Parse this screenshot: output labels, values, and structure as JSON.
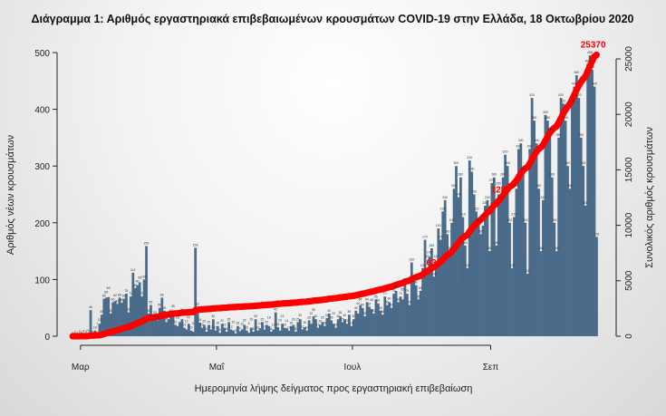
{
  "chart_data": {
    "type": "bar+line",
    "title": "Διάγραμμα 1: Αριθμός εργαστηριακά επιβεβαιωμένων κρουσμάτων COVID-19 στην Ελλάδα, 18 Οκτωβρίου 2020",
    "xlabel": "Ημερομηνία λήψης δείγματος προς εργαστηριακή επιβεβαίωση",
    "ylabel_left": "Αριθμός νέων κρουσμάτων",
    "ylabel_right": "Συνολικός αριθμός κρουσμάτων",
    "ylim_left": [
      0,
      500
    ],
    "ylim_right": [
      0,
      25000
    ],
    "yticks_left": [
      0,
      100,
      200,
      300,
      400,
      500
    ],
    "yticks_right": [
      0,
      5000,
      10000,
      15000,
      20000,
      25000
    ],
    "xticks": [
      {
        "label": "Μαρ",
        "day": 4
      },
      {
        "label": "Μαΐ",
        "day": 65
      },
      {
        "label": "Ιουλ",
        "day": 126
      },
      {
        "label": "Σεπ",
        "day": 188
      }
    ],
    "cumulative_total": 25370,
    "annotations": [
      {
        "label": "633",
        "day": 165
      },
      {
        "label": "1280",
        "day": 195
      },
      {
        "label": "25370",
        "day": 234
      }
    ],
    "colors": {
      "bars": "#4a6b8a",
      "cumulative": "#ff0000"
    },
    "series": [
      {
        "name": "daily_new_cases",
        "type": "bar",
        "values": [
          1,
          2,
          1,
          3,
          2,
          4,
          3,
          5,
          46,
          2,
          10,
          7,
          22,
          38,
          66,
          68,
          69,
          40,
          60,
          62,
          57,
          68,
          59,
          66,
          75,
          42,
          70,
          112,
          85,
          90,
          95,
          70,
          100,
          159,
          40,
          55,
          30,
          32,
          28,
          50,
          68,
          45,
          25,
          30,
          40,
          35,
          20,
          18,
          25,
          30,
          15,
          12,
          22,
          10,
          8,
          156,
          52,
          24,
          15,
          20,
          8,
          20,
          12,
          30,
          10,
          18,
          6,
          22,
          15,
          8,
          25,
          12,
          10,
          5,
          18,
          9,
          12,
          20,
          10,
          6,
          15,
          8,
          30,
          10,
          14,
          25,
          12,
          20,
          18,
          8,
          12,
          42,
          16,
          10,
          22,
          15,
          14,
          10,
          18,
          20,
          8,
          25,
          30,
          12,
          16,
          10,
          28,
          22,
          35,
          30,
          15,
          20,
          25,
          18,
          32,
          40,
          28,
          22,
          15,
          30,
          35,
          25,
          30,
          22,
          38,
          18,
          30,
          45,
          40,
          55,
          50,
          35,
          60,
          52,
          48,
          40,
          65,
          58,
          45,
          38,
          70,
          55,
          60,
          50,
          75,
          80,
          60,
          70,
          65,
          95,
          75,
          55,
          130,
          100,
          90,
          65,
          80,
          120,
          170,
          120,
          140,
          155,
          105,
          120,
          190,
          170,
          220,
          240,
          180,
          150,
          200,
          260,
          300,
          245,
          280,
          210,
          160,
          120,
          310,
          290,
          250,
          220,
          200,
          180,
          195,
          230,
          240,
          150,
          270,
          280,
          160,
          250,
          240,
          280,
          320,
          300,
          200,
          120,
          210,
          260,
          330,
          340,
          290,
          200,
          110,
          330,
          420,
          380,
          340,
          260,
          150,
          240,
          390,
          380,
          360,
          280,
          200,
          150,
          350,
          420,
          410,
          380,
          300,
          260,
          410,
          440,
          460,
          420,
          350,
          300,
          230,
          480,
          495,
          470,
          440,
          175
        ]
      },
      {
        "name": "cumulative_cases",
        "type": "line",
        "axis": "right",
        "derived_from": "cumsum of daily_new_cases, ending at cumulative_total"
      }
    ]
  }
}
